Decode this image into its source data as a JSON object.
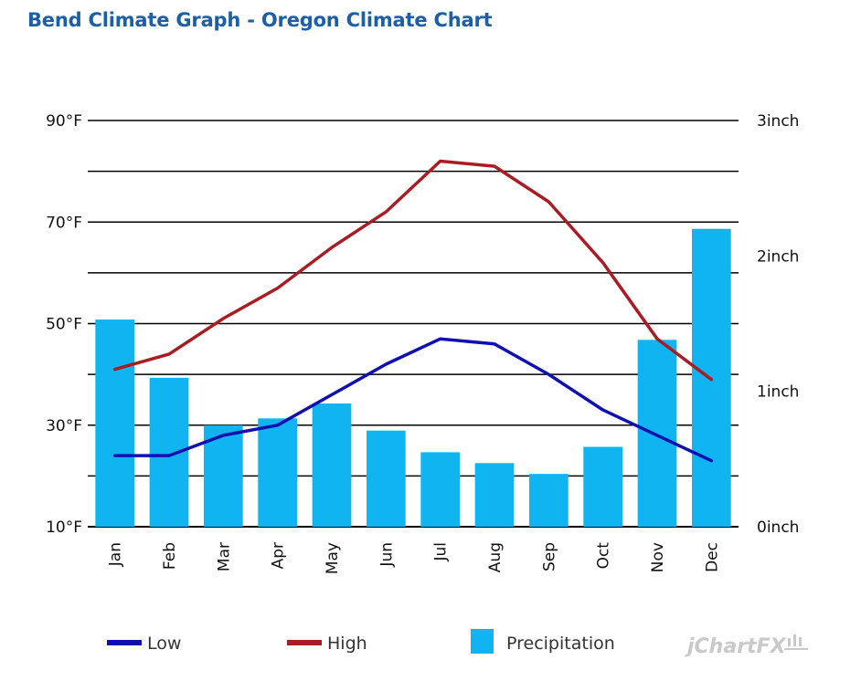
{
  "chart_data": {
    "type": "bar",
    "title": "Bend Climate Graph - Oregon Climate Chart",
    "categories": [
      "Jan",
      "Feb",
      "Mar",
      "Apr",
      "May",
      "Jun",
      "Jul",
      "Aug",
      "Sep",
      "Oct",
      "Nov",
      "Dec"
    ],
    "left_axis": {
      "unit": "°F",
      "range": [
        10,
        90
      ],
      "tick_labels": [
        "90°F",
        "70°F",
        "50°F",
        "30°F",
        "10°F"
      ],
      "tick_values": [
        90,
        70,
        50,
        30,
        10
      ]
    },
    "right_axis": {
      "unit": "inch",
      "range": [
        0,
        3
      ],
      "tick_labels": [
        "3inch",
        "2inch",
        "1inch",
        "0inch"
      ],
      "tick_values": [
        3,
        2,
        1,
        0
      ]
    },
    "grid": true,
    "series": [
      {
        "name": "Low",
        "type": "line",
        "axis": "left",
        "color": "#1010b0",
        "values": [
          24,
          24,
          28,
          30,
          36,
          42,
          47,
          46,
          40,
          33,
          28,
          23
        ]
      },
      {
        "name": "High",
        "type": "line",
        "axis": "left",
        "color": "#a81c24",
        "values": [
          41,
          44,
          51,
          57,
          65,
          72,
          82,
          81,
          74,
          62,
          47,
          39
        ]
      },
      {
        "name": "Precipitation",
        "type": "bar",
        "axis": "right",
        "color": "#10b4f0",
        "values": [
          1.53,
          1.1,
          0.75,
          0.8,
          0.91,
          0.71,
          0.55,
          0.47,
          0.39,
          0.59,
          1.38,
          2.2
        ]
      }
    ],
    "legend": {
      "placement": "bottom",
      "entries": [
        "Low",
        "High",
        "Precipitation"
      ]
    }
  },
  "branding": "jChartFX"
}
